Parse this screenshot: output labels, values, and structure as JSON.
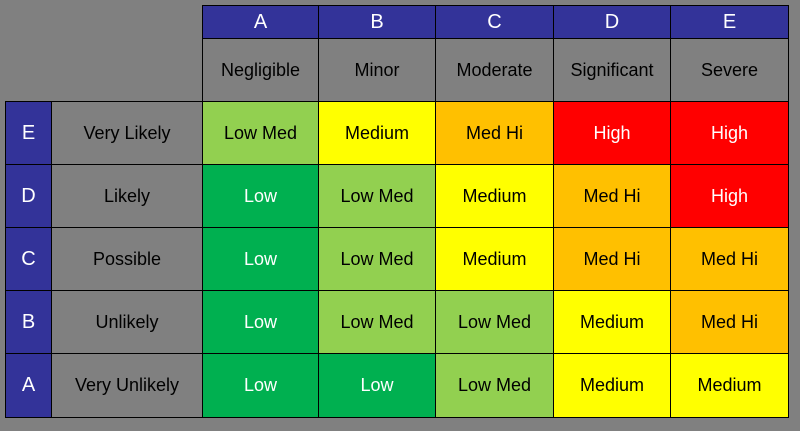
{
  "columns": [
    {
      "letter": "A",
      "label": "Negligible"
    },
    {
      "letter": "B",
      "label": "Minor"
    },
    {
      "letter": "C",
      "label": "Moderate"
    },
    {
      "letter": "D",
      "label": "Significant"
    },
    {
      "letter": "E",
      "label": "Severe"
    }
  ],
  "rows": [
    {
      "letter": "E",
      "label": "Very Likely",
      "cells": [
        "Low Med",
        "Medium",
        "Med Hi",
        "High",
        "High"
      ]
    },
    {
      "letter": "D",
      "label": "Likely",
      "cells": [
        "Low",
        "Low Med",
        "Medium",
        "Med Hi",
        "High"
      ]
    },
    {
      "letter": "C",
      "label": "Possible",
      "cells": [
        "Low",
        "Low Med",
        "Medium",
        "Med Hi",
        "Med Hi"
      ]
    },
    {
      "letter": "B",
      "label": "Unlikely",
      "cells": [
        "Low",
        "Low Med",
        "Low Med",
        "Medium",
        "Med Hi"
      ]
    },
    {
      "letter": "A",
      "label": "Very Unlikely",
      "cells": [
        "Low",
        "Low",
        "Low Med",
        "Medium",
        "Medium"
      ]
    }
  ],
  "level_colors": {
    "Low": "#00b050",
    "Low Med": "#92d050",
    "Medium": "#ffff00",
    "Med Hi": "#ffc000",
    "High": "#ff0000"
  }
}
